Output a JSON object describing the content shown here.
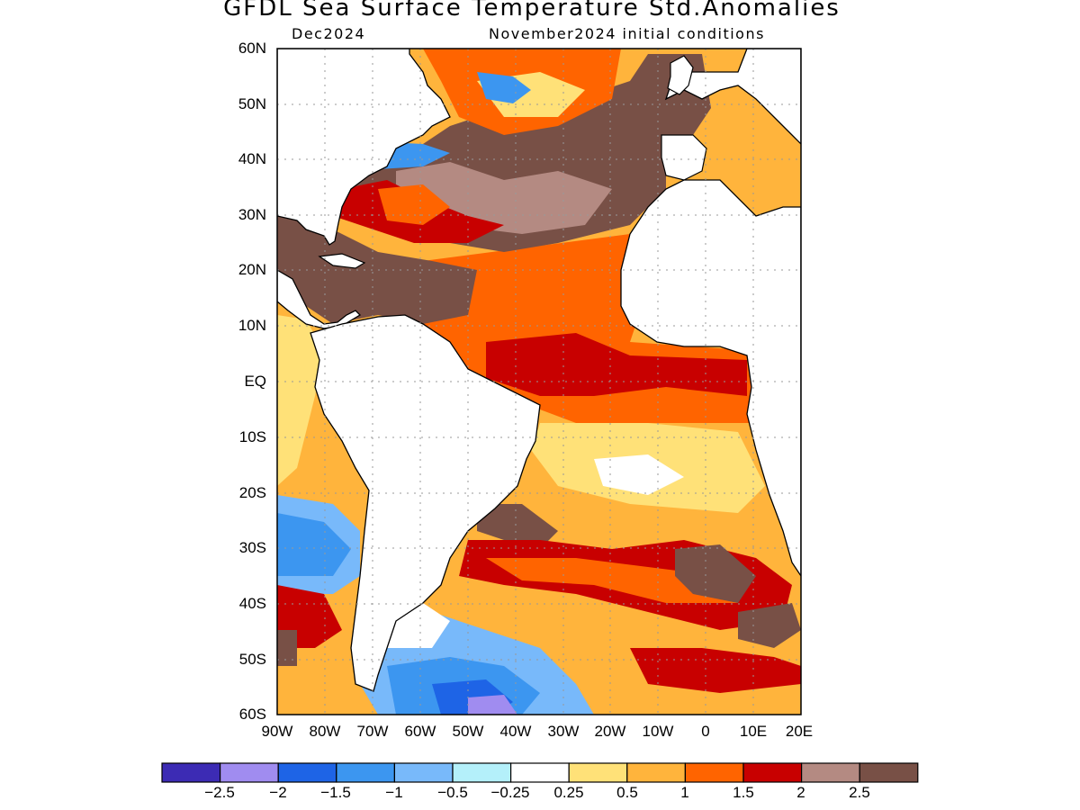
{
  "title": "GFDL Sea Surface Temperature Std.Anomalies",
  "subtitle_left": "Dec2024",
  "subtitle_right": "November2024 initial conditions",
  "lat_labels": [
    "60N",
    "50N",
    "40N",
    "30N",
    "20N",
    "10N",
    "EQ",
    "10S",
    "20S",
    "30S",
    "40S",
    "50S",
    "60S"
  ],
  "lon_labels": [
    "90W",
    "80W",
    "70W",
    "60W",
    "50W",
    "40W",
    "30W",
    "20W",
    "10W",
    "0",
    "10E",
    "20E"
  ],
  "colorbar": {
    "colors": [
      "#3c2bb4",
      "#a08cf0",
      "#1e64e6",
      "#3c96f0",
      "#78b9fa",
      "#b4f0fa",
      "#ffffff",
      "#ffe178",
      "#ffb43c",
      "#ff6400",
      "#c80000",
      "#b48a82",
      "#785046"
    ],
    "labels": [
      "−2.5",
      "−2",
      "−1.5",
      "−1",
      "−0.5",
      "−0.25",
      "0.25",
      "0.5",
      "1",
      "1.5",
      "2",
      "2.5"
    ]
  },
  "map": {
    "lon_range": [
      -90,
      20
    ],
    "lat_range": [
      -60,
      60
    ],
    "dominant_anomalies": {
      "north_atlantic_central": "2.5",
      "caribbean": "2.5",
      "tropical_atlantic": "1.5",
      "south_atlantic_central": "1",
      "southeast_pacific_near_chile": "-1.5",
      "drake_passage_south": "-2"
    }
  }
}
